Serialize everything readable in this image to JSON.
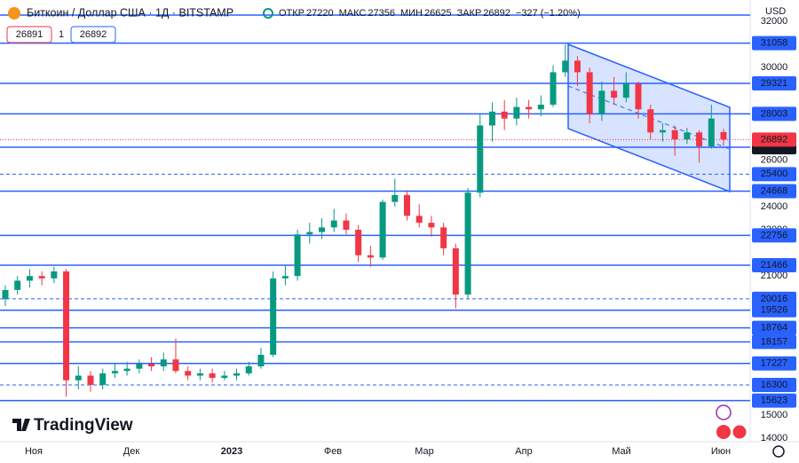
{
  "chart_data": {
    "type": "candlestick",
    "header": {
      "title": "Биткоин / Доллар США · 1Д · BITSTAMP",
      "open_label": "ОТКР",
      "open": 27220,
      "high_label": "МАКС",
      "high": 27356,
      "low_label": "МИН",
      "low": 26625,
      "close_label": "ЗАКР",
      "close": 26892,
      "change": "−327 (−1.20%)"
    },
    "bid": 26891,
    "spread": 1,
    "ask": 26892,
    "currency": "USD",
    "brand": "TradingView",
    "months": [
      "Ноя",
      "Дек",
      "2023",
      "Фев",
      "Мар",
      "Апр",
      "Май",
      "Июн"
    ],
    "ylim": [
      14000,
      32000
    ],
    "yticks": [
      14000,
      15000,
      21000,
      23000,
      24000,
      26000,
      30000,
      32000
    ],
    "up_color": "#089981",
    "down_color": "#f23645",
    "level_color": "#2962ff",
    "last_price": 26892,
    "levels": [
      {
        "value": 31058,
        "dashed": false
      },
      {
        "value": 29321,
        "dashed": false
      },
      {
        "value": 28003,
        "dashed": false
      },
      {
        "value": 26564,
        "dashed": false
      },
      {
        "value": 25400,
        "dashed": true
      },
      {
        "value": 24668,
        "dashed": false
      },
      {
        "value": 22756,
        "dashed": false
      },
      {
        "value": 21466,
        "dashed": false
      },
      {
        "value": 20016,
        "dashed": true
      },
      {
        "value": 19526,
        "dashed": false
      },
      {
        "value": 18764,
        "dashed": false
      },
      {
        "value": 18157,
        "dashed": false
      },
      {
        "value": 17227,
        "dashed": false
      },
      {
        "value": 16300,
        "dashed": true
      },
      {
        "value": 15623,
        "dashed": false
      }
    ],
    "candles": [
      [
        20000,
        20600,
        19700,
        20400
      ],
      [
        20400,
        21000,
        20200,
        20800
      ],
      [
        20800,
        21300,
        20500,
        21000
      ],
      [
        21000,
        21200,
        20600,
        20900
      ],
      [
        20900,
        21400,
        20700,
        21200
      ],
      [
        21200,
        21300,
        15800,
        16500
      ],
      [
        16500,
        17100,
        16100,
        16700
      ],
      [
        16700,
        16900,
        16000,
        16300
      ],
      [
        16300,
        17000,
        16100,
        16800
      ],
      [
        16800,
        17200,
        16600,
        16900
      ],
      [
        16900,
        17300,
        16700,
        17000
      ],
      [
        17000,
        17400,
        16800,
        17200
      ],
      [
        17200,
        17500,
        16900,
        17100
      ],
      [
        17100,
        17700,
        16900,
        17400
      ],
      [
        17400,
        18300,
        16800,
        16900
      ],
      [
        16900,
        17100,
        16500,
        16700
      ],
      [
        16700,
        17000,
        16500,
        16800
      ],
      [
        16800,
        17000,
        16400,
        16600
      ],
      [
        16600,
        16900,
        16500,
        16700
      ],
      [
        16700,
        17000,
        16500,
        16800
      ],
      [
        16800,
        17300,
        16700,
        17100
      ],
      [
        17100,
        17900,
        17000,
        17600
      ],
      [
        17600,
        21200,
        17500,
        20900
      ],
      [
        20900,
        21500,
        20600,
        21000
      ],
      [
        21000,
        23000,
        20800,
        22800
      ],
      [
        22800,
        23300,
        22400,
        22900
      ],
      [
        22900,
        23500,
        22600,
        23100
      ],
      [
        23100,
        23900,
        22900,
        23400
      ],
      [
        23400,
        23700,
        22800,
        23000
      ],
      [
        23000,
        23200,
        21600,
        21900
      ],
      [
        21900,
        22300,
        21400,
        21800
      ],
      [
        21800,
        24300,
        21700,
        24200
      ],
      [
        24200,
        25200,
        24000,
        24500
      ],
      [
        24500,
        24700,
        23400,
        23600
      ],
      [
        23600,
        24100,
        23100,
        23300
      ],
      [
        23300,
        23600,
        22700,
        23100
      ],
      [
        23100,
        23300,
        21900,
        22200
      ],
      [
        22200,
        22400,
        19600,
        20200
      ],
      [
        20200,
        24800,
        20000,
        24600
      ],
      [
        24600,
        28000,
        24400,
        27500
      ],
      [
        27500,
        28500,
        26800,
        28100
      ],
      [
        28100,
        28600,
        27300,
        27800
      ],
      [
        27800,
        28700,
        27500,
        28300
      ],
      [
        28300,
        28600,
        27800,
        28200
      ],
      [
        28200,
        28800,
        27900,
        28400
      ],
      [
        28400,
        30100,
        28300,
        29800
      ],
      [
        29800,
        31000,
        29600,
        30300
      ],
      [
        30300,
        30500,
        29200,
        29800
      ],
      [
        29800,
        30000,
        27600,
        28000
      ],
      [
        28000,
        29400,
        27700,
        29000
      ],
      [
        29000,
        29600,
        28400,
        28700
      ],
      [
        28700,
        29800,
        28500,
        29300
      ],
      [
        29300,
        29400,
        27800,
        28200
      ],
      [
        28200,
        28400,
        26900,
        27200
      ],
      [
        27200,
        27600,
        26800,
        27300
      ],
      [
        27300,
        27500,
        26200,
        26900
      ],
      [
        26900,
        27400,
        26700,
        27200
      ],
      [
        27200,
        27300,
        25900,
        26600
      ],
      [
        26600,
        28400,
        26500,
        27800
      ],
      [
        27220,
        27356,
        26625,
        26892
      ]
    ]
  }
}
